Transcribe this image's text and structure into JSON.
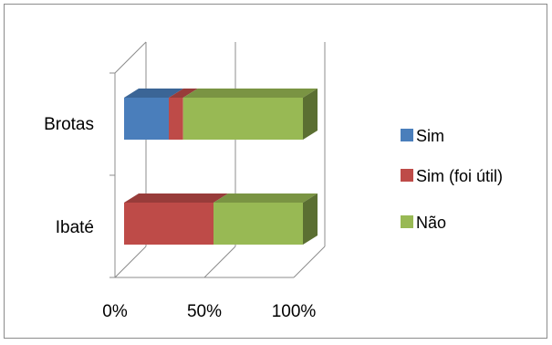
{
  "chart_data": {
    "type": "bar",
    "orientation": "horizontal",
    "stacked": "100%",
    "style": "3d",
    "categories": [
      "Brotas",
      "Ibaté"
    ],
    "series": [
      {
        "name": "Sim",
        "values": [
          25,
          0
        ],
        "color": "#4a7ebb"
      },
      {
        "name": "Sim (foi útil)",
        "values": [
          8,
          50
        ],
        "color": "#be4b48"
      },
      {
        "name": "Não",
        "values": [
          67,
          50
        ],
        "color": "#98b954"
      }
    ],
    "x_ticks": [
      "0%",
      "50%",
      "100%"
    ],
    "xlim": [
      0,
      100
    ],
    "grid": true,
    "legend_position": "right"
  }
}
